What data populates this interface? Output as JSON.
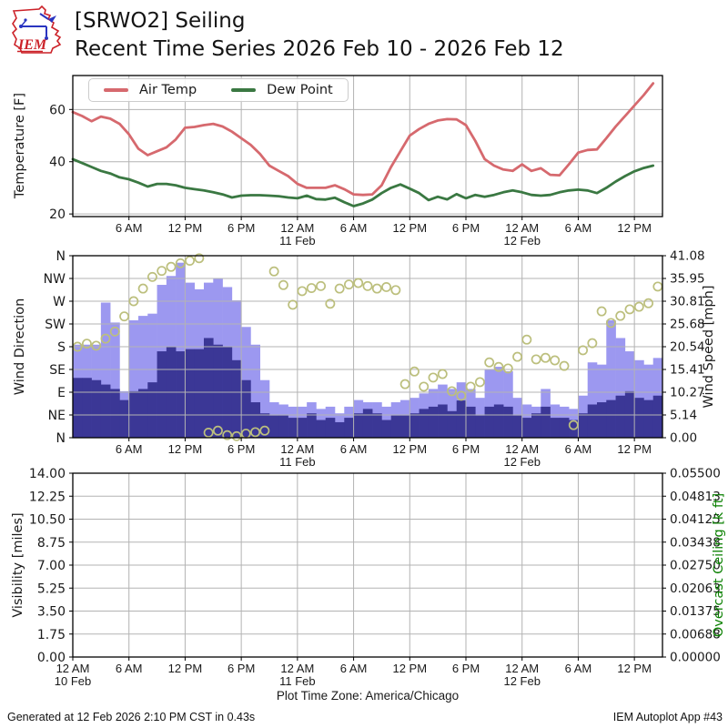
{
  "header": {
    "logo_text": "IEM",
    "title_line1": "[SRWO2] Seiling",
    "title_line2": "Recent Time Series 2026 Feb 10 - 2026 Feb 12"
  },
  "colors": {
    "air_temp": "#d6696e",
    "dew_point": "#3a7842",
    "wind_gust_bar": "#9c98f0",
    "wind_speed_bar": "#3b3796",
    "wind_dir_dot": "#bcbf7d",
    "grid": "#b3b3b3",
    "ceiling_label": "#0a8000"
  },
  "time_axis": {
    "hours_span": 63,
    "tick_hours": [
      6,
      12,
      18,
      24,
      30,
      36,
      42,
      48,
      54,
      60
    ],
    "tick_labels": [
      "6 AM",
      "12 PM",
      "6 PM",
      "12 AM",
      "6 AM",
      "12 PM",
      "6 PM",
      "12 AM",
      "6 AM",
      "12 PM"
    ],
    "date_ticks": [
      {
        "hour": 24,
        "label": "11 Feb"
      },
      {
        "hour": 48,
        "label": "12 Feb"
      }
    ],
    "bottom_tick_hours": [
      0,
      6,
      12,
      18,
      24,
      30,
      36,
      42,
      48,
      54,
      60
    ],
    "bottom_tick_labels": [
      "12 AM",
      "6 AM",
      "12 PM",
      "6 PM",
      "12 AM",
      "6 AM",
      "12 PM",
      "6 PM",
      "12 AM",
      "6 AM",
      "12 PM"
    ],
    "bottom_date_ticks": [
      {
        "hour": 0,
        "label": "10 Feb"
      },
      {
        "hour": 24,
        "label": "11 Feb"
      },
      {
        "hour": 48,
        "label": "12 Feb"
      }
    ],
    "xlabel": "Plot Time Zone: America/Chicago"
  },
  "chart_data": [
    {
      "type": "line",
      "ylabel": "Temperature [F]",
      "ylim": [
        19,
        73
      ],
      "yticks": [
        20,
        40,
        60
      ],
      "x_unit": "hours since 2026-02-10 12 AM",
      "legend_position": "upper left",
      "series": [
        {
          "name": "Air Temp",
          "color": "#d6696e",
          "values": [
            59,
            57.5,
            55.5,
            57.3,
            56.5,
            54.5,
            50.5,
            45,
            42.5,
            44,
            45.5,
            48.5,
            53,
            53.3,
            54,
            54.5,
            53.5,
            51.5,
            49,
            46.5,
            43,
            38.5,
            36.5,
            34.5,
            31.5,
            30,
            30,
            30,
            31,
            29.5,
            27.5,
            27.3,
            27.5,
            31,
            38,
            44,
            50,
            52.5,
            54.5,
            55.8,
            56.3,
            56.2,
            54,
            48,
            41,
            38.5,
            37,
            36.5,
            39,
            36.5,
            37.5,
            35,
            34.8,
            39,
            43.5,
            44.5,
            44.7,
            49,
            53.5,
            57.5,
            61.5,
            65.5,
            70
          ]
        },
        {
          "name": "Dew Point",
          "color": "#3a7842",
          "values": [
            41,
            39.5,
            38,
            36.5,
            35.5,
            34,
            33.3,
            32,
            30.5,
            31.5,
            31.5,
            31,
            30,
            29.5,
            29,
            28.3,
            27.5,
            26.3,
            27,
            27.2,
            27.2,
            27,
            26.8,
            26.3,
            26,
            27,
            25.7,
            25.5,
            26.2,
            24.5,
            23,
            24,
            25.5,
            28,
            30,
            31.3,
            29.7,
            28,
            25.3,
            26.6,
            25.6,
            27.6,
            26,
            27.3,
            26.6,
            27.3,
            28.3,
            29,
            28.3,
            27.3,
            27,
            27.3,
            28.3,
            29,
            29.3,
            29,
            28,
            30,
            32.4,
            34.5,
            36.3,
            37.6,
            38.5
          ]
        }
      ]
    },
    {
      "type": "bar+scatter",
      "ylabel_left": "Wind Direction",
      "ylabel_right": "Wind Speed [mph]",
      "yticks_left": [
        "N",
        "NW",
        "W",
        "SW",
        "S",
        "SE",
        "E",
        "NE",
        "N"
      ],
      "yticks_right": [
        "41.08",
        "35.95",
        "30.81",
        "25.68",
        "20.54",
        "15.41",
        "10.27",
        "5.14",
        "0.00"
      ],
      "speed_axis_max": 41.08,
      "direction_axis_max": 360,
      "gust_mph": [
        21,
        21,
        21,
        30.5,
        26,
        10.5,
        26.5,
        27.5,
        28,
        34.5,
        36.5,
        39.5,
        35,
        33.5,
        35,
        36,
        34,
        31,
        25,
        21,
        13,
        8,
        7.5,
        7,
        7,
        8,
        6.5,
        7,
        5.5,
        7,
        8.5,
        8,
        8,
        7,
        8,
        8.5,
        9,
        10,
        11,
        12,
        11,
        12.5,
        11,
        9,
        15.5,
        16,
        15,
        9,
        7.5,
        7,
        11,
        7.5,
        7,
        6.5,
        9.5,
        17,
        16.5,
        26.5,
        22.5,
        19.5,
        17.5,
        16.5,
        18
      ],
      "speed_mph": [
        13.5,
        13.5,
        13,
        12,
        11,
        8.5,
        10.5,
        11,
        12.5,
        19.5,
        20.5,
        19.5,
        20,
        20,
        22.5,
        21,
        20.5,
        17.5,
        13,
        8,
        5.5,
        5,
        5,
        4.5,
        4.5,
        5.5,
        4,
        4.5,
        3.5,
        4.5,
        5.5,
        6.5,
        5.5,
        4,
        5,
        5,
        5.5,
        6.5,
        7,
        7.5,
        6,
        8.4,
        7,
        5,
        7,
        7.5,
        7,
        5,
        4.5,
        5.5,
        7,
        4.5,
        4.5,
        4,
        5.5,
        7.5,
        8,
        8.5,
        9.5,
        10.5,
        9,
        8.5,
        9.5
      ],
      "direction_deg": [
        180,
        186,
        182,
        196,
        210,
        240,
        270,
        295,
        318,
        330,
        338,
        345,
        350,
        355,
        10,
        14,
        5,
        3,
        8,
        11,
        14,
        329,
        302,
        263,
        290,
        296,
        300,
        265,
        295,
        303,
        306,
        300,
        295,
        298,
        292,
        106,
        131,
        101,
        119,
        126,
        92,
        83,
        101,
        110,
        149,
        140,
        137,
        160,
        194,
        155,
        158,
        153,
        142,
        25,
        173,
        187,
        250,
        227,
        241,
        254,
        259,
        266,
        299
      ]
    },
    {
      "type": "line",
      "ylabel_left": "Visibility [miles]",
      "ylabel_right": "Overcast Ceiling [k ft]",
      "yticks_left": [
        "14.00",
        "12.25",
        "10.50",
        "8.75",
        "7.00",
        "5.25",
        "3.50",
        "1.75",
        "0.00"
      ],
      "yticks_right": [
        "0.05500",
        "0.04813",
        "0.04125",
        "0.03438",
        "0.02750",
        "0.02063",
        "0.01375",
        "0.00688",
        "0.00000"
      ],
      "series": []
    }
  ],
  "footer": {
    "left": "Generated at 12 Feb 2026 2:10 PM CST in 0.43s",
    "right": "IEM Autoplot App #43"
  }
}
